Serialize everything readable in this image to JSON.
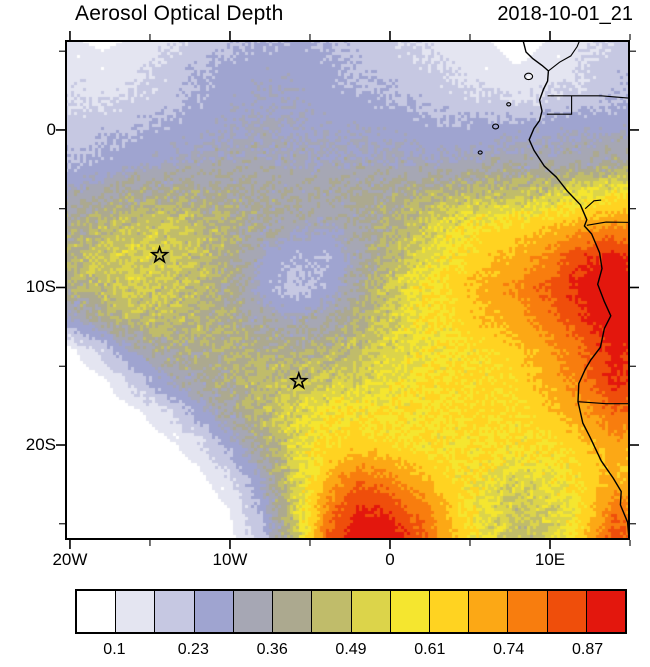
{
  "header": {
    "title": "Aerosol Optical Depth",
    "timestamp": "2018-10-01_21"
  },
  "axes": {
    "x_ticks": [
      {
        "label": "20W",
        "lon": -20
      },
      {
        "label": "10W",
        "lon": -10
      },
      {
        "label": "0",
        "lon": 0
      },
      {
        "label": "10E",
        "lon": 10
      }
    ],
    "x_minor_lons": [
      -15,
      -5,
      5,
      15
    ],
    "y_ticks": [
      {
        "label": "0",
        "lat": 0
      },
      {
        "label": "10S",
        "lat": -10
      },
      {
        "label": "20S",
        "lat": -20
      }
    ],
    "y_minor_lats": [
      5,
      -5,
      -15,
      -25
    ]
  },
  "colorbar": {
    "levels": [
      0.1,
      0.164,
      0.229,
      0.293,
      0.357,
      0.421,
      0.486,
      0.55,
      0.614,
      0.679,
      0.743,
      0.807,
      0.871
    ],
    "colors": [
      "#ffffff",
      "#e4e5f1",
      "#c6c8e2",
      "#9fa4d0",
      "#a6a7b4",
      "#aca98f",
      "#c0bc6a",
      "#dcd44a",
      "#f5e62f",
      "#ffd321",
      "#fca815",
      "#f87d0e",
      "#ef4e0b",
      "#e3170d"
    ],
    "tick_labels": [
      "0.1",
      "0.23",
      "0.36",
      "0.49",
      "0.61",
      "0.74",
      "0.87"
    ],
    "tick_edge_indices": [
      1,
      3,
      5,
      7,
      9,
      11,
      13
    ]
  },
  "markers": [
    {
      "name": "star-marker-ascension",
      "lon": -14.4,
      "lat": -7.95
    },
    {
      "name": "star-marker-st-helena",
      "lon": -5.7,
      "lat": -15.95
    }
  ],
  "chart_data": {
    "type": "heatmap",
    "title": "Aerosol Optical Depth",
    "timestamp": "2018-10-01_21",
    "xlabel": "",
    "ylabel": "",
    "lon_range": [
      -20.31,
      15.0
    ],
    "lat_range": [
      -26.03,
      5.71
    ],
    "x_tick_labels": [
      "20W",
      "10W",
      "0",
      "10E"
    ],
    "y_tick_labels": [
      "0",
      "10S",
      "20S"
    ],
    "legend": "AOD contour levels 0.1 to 0.87, step ~0.064",
    "grid_lons": [
      -20,
      -18,
      -16,
      -14,
      -12,
      -10,
      -8,
      -6,
      -4,
      -2,
      0,
      2,
      4,
      6,
      8,
      10,
      12,
      14,
      16
    ],
    "grid_lats": [
      6,
      4,
      2,
      0,
      -2,
      -4,
      -6,
      -8,
      -10,
      -12,
      -14,
      -16,
      -18,
      -20,
      -22,
      -24,
      -26
    ],
    "aod_values": [
      [
        0.1,
        0.08,
        0.1,
        0.14,
        0.18,
        0.2,
        0.22,
        0.24,
        0.22,
        0.2,
        0.18,
        0.15,
        0.12,
        0.1,
        0.08,
        0.1,
        0.14,
        0.18,
        0.2
      ],
      [
        0.14,
        0.12,
        0.14,
        0.18,
        0.22,
        0.25,
        0.27,
        0.27,
        0.25,
        0.22,
        0.2,
        0.18,
        0.15,
        0.12,
        0.1,
        0.12,
        0.16,
        0.2,
        0.22
      ],
      [
        0.16,
        0.15,
        0.17,
        0.2,
        0.24,
        0.27,
        0.28,
        0.28,
        0.26,
        0.24,
        0.23,
        0.21,
        0.19,
        0.17,
        0.15,
        0.17,
        0.19,
        0.22,
        0.24
      ],
      [
        0.2,
        0.21,
        0.23,
        0.25,
        0.27,
        0.29,
        0.3,
        0.29,
        0.28,
        0.28,
        0.27,
        0.26,
        0.25,
        0.26,
        0.27,
        0.28,
        0.28,
        0.28,
        0.28
      ],
      [
        0.22,
        0.25,
        0.27,
        0.29,
        0.3,
        0.31,
        0.31,
        0.3,
        0.3,
        0.3,
        0.3,
        0.29,
        0.29,
        0.31,
        0.32,
        0.32,
        0.33,
        0.36,
        0.38
      ],
      [
        0.3,
        0.34,
        0.37,
        0.38,
        0.38,
        0.37,
        0.36,
        0.34,
        0.34,
        0.36,
        0.38,
        0.4,
        0.43,
        0.45,
        0.46,
        0.48,
        0.55,
        0.58,
        0.6
      ],
      [
        0.38,
        0.43,
        0.46,
        0.48,
        0.45,
        0.41,
        0.36,
        0.32,
        0.3,
        0.34,
        0.41,
        0.48,
        0.55,
        0.6,
        0.63,
        0.66,
        0.7,
        0.74,
        0.72
      ],
      [
        0.42,
        0.48,
        0.52,
        0.5,
        0.46,
        0.4,
        0.28,
        0.24,
        0.23,
        0.31,
        0.43,
        0.52,
        0.6,
        0.66,
        0.7,
        0.76,
        0.85,
        0.9,
        0.82
      ],
      [
        0.4,
        0.46,
        0.5,
        0.48,
        0.44,
        0.38,
        0.26,
        0.2,
        0.24,
        0.36,
        0.48,
        0.58,
        0.64,
        0.7,
        0.75,
        0.82,
        0.9,
        0.95,
        0.86
      ],
      [
        0.28,
        0.38,
        0.45,
        0.45,
        0.43,
        0.4,
        0.34,
        0.3,
        0.33,
        0.41,
        0.5,
        0.58,
        0.63,
        0.68,
        0.72,
        0.78,
        0.86,
        0.92,
        0.88
      ],
      [
        0.08,
        0.18,
        0.3,
        0.38,
        0.4,
        0.41,
        0.4,
        0.4,
        0.42,
        0.46,
        0.52,
        0.57,
        0.6,
        0.62,
        0.66,
        0.72,
        0.8,
        0.9,
        0.85
      ],
      [
        0.05,
        0.08,
        0.18,
        0.28,
        0.35,
        0.4,
        0.44,
        0.46,
        0.48,
        0.52,
        0.56,
        0.6,
        0.62,
        0.62,
        0.64,
        0.7,
        0.78,
        0.88,
        0.82
      ],
      [
        0.05,
        0.05,
        0.08,
        0.15,
        0.25,
        0.35,
        0.45,
        0.52,
        0.58,
        0.6,
        0.6,
        0.6,
        0.62,
        0.63,
        0.62,
        0.66,
        0.72,
        0.8,
        0.75
      ],
      [
        0.05,
        0.05,
        0.05,
        0.08,
        0.14,
        0.25,
        0.38,
        0.52,
        0.62,
        0.65,
        0.63,
        0.6,
        0.6,
        0.62,
        0.6,
        0.62,
        0.66,
        0.72,
        0.68
      ],
      [
        0.05,
        0.05,
        0.05,
        0.05,
        0.08,
        0.16,
        0.3,
        0.5,
        0.68,
        0.78,
        0.75,
        0.68,
        0.62,
        0.58,
        0.52,
        0.56,
        0.62,
        0.7,
        0.64
      ],
      [
        0.05,
        0.05,
        0.05,
        0.05,
        0.05,
        0.1,
        0.25,
        0.5,
        0.75,
        0.88,
        0.85,
        0.78,
        0.65,
        0.55,
        0.48,
        0.52,
        0.62,
        0.78,
        0.72
      ],
      [
        0.05,
        0.05,
        0.05,
        0.05,
        0.05,
        0.08,
        0.2,
        0.45,
        0.8,
        0.95,
        0.92,
        0.82,
        0.68,
        0.55,
        0.45,
        0.5,
        0.65,
        0.85,
        0.75
      ]
    ]
  },
  "geo": {
    "coastline": [
      [
        8.3,
        5.75
      ],
      [
        8.5,
        4.95
      ],
      [
        8.9,
        4.55
      ],
      [
        9.5,
        4.1
      ],
      [
        9.9,
        3.75
      ],
      [
        9.85,
        3.1
      ],
      [
        9.6,
        2.6
      ],
      [
        9.35,
        1.9
      ],
      [
        9.5,
        1.2
      ],
      [
        9.35,
        0.6
      ],
      [
        9.0,
        0.1
      ],
      [
        8.7,
        -0.62
      ],
      [
        9.0,
        -1.3
      ],
      [
        9.65,
        -2.3
      ],
      [
        10.4,
        -3.0
      ],
      [
        11.1,
        -3.9
      ],
      [
        11.9,
        -4.75
      ],
      [
        12.3,
        -5.7
      ],
      [
        12.15,
        -6.1
      ],
      [
        12.6,
        -6.6
      ],
      [
        13.1,
        -7.8
      ],
      [
        13.25,
        -8.8
      ],
      [
        12.98,
        -9.8
      ],
      [
        13.4,
        -10.9
      ],
      [
        13.8,
        -11.8
      ],
      [
        13.4,
        -12.6
      ],
      [
        13.15,
        -13.8
      ],
      [
        12.55,
        -14.6
      ],
      [
        12.2,
        -15.2
      ],
      [
        11.8,
        -16.1
      ],
      [
        11.75,
        -17.25
      ],
      [
        12.05,
        -18.6
      ],
      [
        12.5,
        -19.5
      ],
      [
        13.2,
        -21.0
      ],
      [
        13.95,
        -22.1
      ],
      [
        14.45,
        -22.95
      ],
      [
        14.4,
        -23.8
      ],
      [
        14.85,
        -24.9
      ],
      [
        14.95,
        -26.1
      ]
    ],
    "borders": [
      [
        [
          9.9,
          3.75
        ],
        [
          10.6,
          4.3
        ],
        [
          11.3,
          4.7
        ],
        [
          11.7,
          5.3
        ],
        [
          11.9,
          5.8
        ]
      ],
      [
        [
          9.85,
          2.17
        ],
        [
          11.35,
          2.17
        ],
        [
          13.2,
          2.17
        ],
        [
          15.2,
          2.0
        ],
        [
          16.1,
          1.85
        ]
      ],
      [
        [
          9.8,
          1.0
        ],
        [
          11.35,
          1.0
        ],
        [
          11.35,
          2.17
        ]
      ],
      [
        [
          12.2,
          -5.0
        ],
        [
          12.75,
          -4.5
        ],
        [
          13.2,
          -4.45
        ]
      ],
      [
        [
          12.3,
          -6.05
        ],
        [
          13.5,
          -5.85
        ],
        [
          15.2,
          -5.87
        ],
        [
          16.1,
          -6.0
        ]
      ],
      [
        [
          11.75,
          -17.25
        ],
        [
          13.5,
          -17.38
        ],
        [
          16.1,
          -17.38
        ]
      ]
    ],
    "islands": [
      {
        "name": "bioko",
        "lon": 8.66,
        "lat": 3.4,
        "r": 4
      },
      {
        "name": "principe",
        "lon": 7.42,
        "lat": 1.63,
        "r": 2
      },
      {
        "name": "sao-tome",
        "lon": 6.6,
        "lat": 0.22,
        "r": 3
      },
      {
        "name": "annobon",
        "lon": 5.64,
        "lat": -1.43,
        "r": 2
      }
    ]
  }
}
